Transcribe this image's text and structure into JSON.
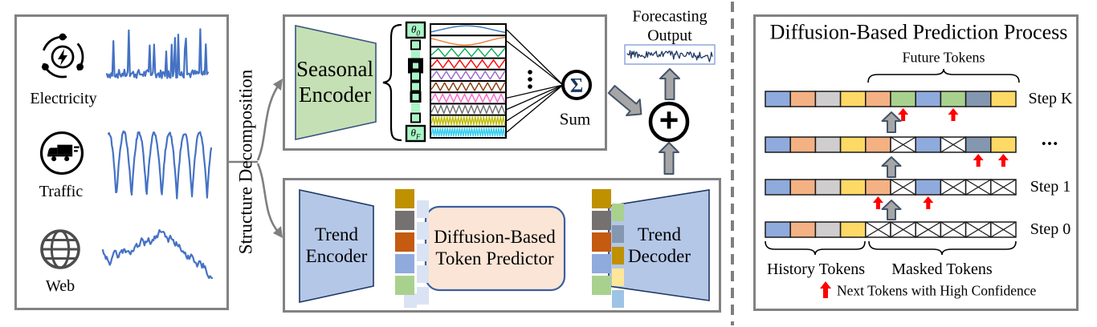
{
  "left_panel": {
    "items": [
      {
        "label": "Electricity",
        "icon": "electricity-icon",
        "pattern": "spiky"
      },
      {
        "label": "Traffic",
        "icon": "traffic-icon",
        "pattern": "periodic"
      },
      {
        "label": "Web",
        "icon": "web-icon",
        "pattern": "walk"
      }
    ],
    "series_color": "#4472C4"
  },
  "decomposition": {
    "label": "Structure Decomposition"
  },
  "seasonal_branch": {
    "encoder_label": "Seasonal\nEncoder",
    "theta_symbol": "θ",
    "theta_top_sub": "0",
    "theta_bottom_sub": "F",
    "theta_fill": "#A9F5C5",
    "theta_cells": [
      {
        "border": 2
      },
      {
        "border": 0
      },
      {
        "border": 6
      },
      {
        "border": 2
      },
      {
        "border": 2
      },
      {
        "border": 3
      },
      {
        "border": 0
      },
      {
        "border": 2
      }
    ],
    "components": [
      {
        "color": "#2E75B6",
        "cycles": 0.7,
        "wave": "sine"
      },
      {
        "color": "#ED7D31",
        "cycles": 0.8,
        "wave": "sine"
      },
      {
        "color": "#00B050",
        "cycles": 5.5,
        "wave": "tri"
      },
      {
        "color": "#FF0000",
        "cycles": 6.5,
        "wave": "tri"
      },
      {
        "color": "#9966CC",
        "cycles": 7.5,
        "wave": "tri"
      },
      {
        "color": "#843C0C",
        "cycles": 8.5,
        "wave": "tri"
      },
      {
        "color": "#FF66CC",
        "cycles": 10,
        "wave": "tri"
      },
      {
        "color": "#707070",
        "cycles": 12,
        "wave": "tri"
      },
      {
        "color": "#BDBD00",
        "cycles": 26,
        "wave": "tri"
      },
      {
        "color": "#33CCF0",
        "cycles": 30,
        "wave": "tri"
      }
    ],
    "sum_symbol": "Σ",
    "sum_label": "Sum"
  },
  "output": {
    "label": "Forecasting\nOutput",
    "plus_symbol": "+",
    "wave_color": "#203864"
  },
  "trend_branch": {
    "encoder_label": "Trend\nEncoder",
    "predictor_label": "Diffusion-Based\nToken Predictor",
    "decoder_label": "Trend\nDecoder",
    "input_tokens": [
      "#BF9000",
      "#767171",
      "#C55A11",
      "#8FAADC",
      "#A9D18E"
    ],
    "input_shadow_color": "#DAE3F3",
    "output_tokens": [
      "#BF9000",
      "#767171",
      "#C55A11",
      "#8FAADC",
      "#A9D18E"
    ],
    "output_shadow_tokens": [
      "#A9D18E",
      "#8497B0",
      "#BF9000",
      "#FFE699",
      "#9DC3E6"
    ]
  },
  "right_panel": {
    "title": "Diffusion-Based Prediction Process",
    "future_label": "Future Tokens",
    "history_label": "History Tokens",
    "masked_label": "Masked Tokens",
    "legend_label": "Next Tokens with High Confidence",
    "arrow_color": "#FF0000",
    "token_colors": {
      "blue": "#8FAADC",
      "orange": "#F4B183",
      "gray": "#CFCDCD",
      "yellow": "#FFD966",
      "green": "#A9D18E",
      "slate": "#8497B0"
    },
    "rows": [
      {
        "label": "Step K",
        "cells": [
          "blue",
          "orange",
          "gray",
          "yellow",
          "orange",
          "green",
          "blue",
          "green",
          "slate",
          "yellow"
        ],
        "highlights": [
          5,
          7
        ]
      },
      {
        "label": "•••",
        "cells": [
          "blue",
          "orange",
          "gray",
          "yellow",
          "orange",
          "masked",
          "blue",
          "masked",
          "slate",
          "yellow"
        ],
        "highlights": [
          8,
          9
        ]
      },
      {
        "label": "Step 1",
        "cells": [
          "blue",
          "orange",
          "gray",
          "yellow",
          "orange",
          "masked",
          "blue",
          "masked",
          "masked",
          "masked"
        ],
        "highlights": [
          4,
          6
        ]
      },
      {
        "label": "Step 0",
        "cells": [
          "blue",
          "orange",
          "gray",
          "yellow",
          "masked",
          "masked",
          "masked",
          "masked",
          "masked",
          "masked"
        ],
        "highlights": []
      }
    ]
  }
}
